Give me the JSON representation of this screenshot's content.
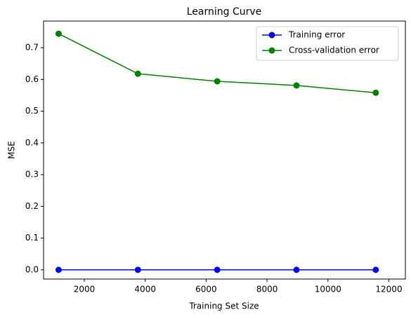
{
  "chart_data": {
    "type": "line",
    "title": "Learning Curve",
    "x_label": "Training Set Size",
    "y_label": "MSE",
    "x": [
      1157,
      3760,
      6364,
      8967,
      11570
    ],
    "series": [
      {
        "name": "Training error",
        "color": "#0000ff",
        "values": [
          0,
          0,
          0,
          0,
          0
        ]
      },
      {
        "name": "Cross-validation error",
        "color": "#008000",
        "values": [
          0.744,
          0.618,
          0.594,
          0.581,
          0.558
        ]
      }
    ],
    "xlim": [
      662,
      12542
    ],
    "ylim": [
      -0.029,
      0.784
    ],
    "xticks": [
      2000,
      4000,
      6000,
      8000,
      10000,
      12000
    ],
    "yticks": [
      {
        "value": 0,
        "label": "0.0"
      },
      0.1,
      0.2,
      0.3,
      0.4,
      0.5,
      0.6,
      0.7
    ],
    "grid": false,
    "legend": "upper right"
  }
}
